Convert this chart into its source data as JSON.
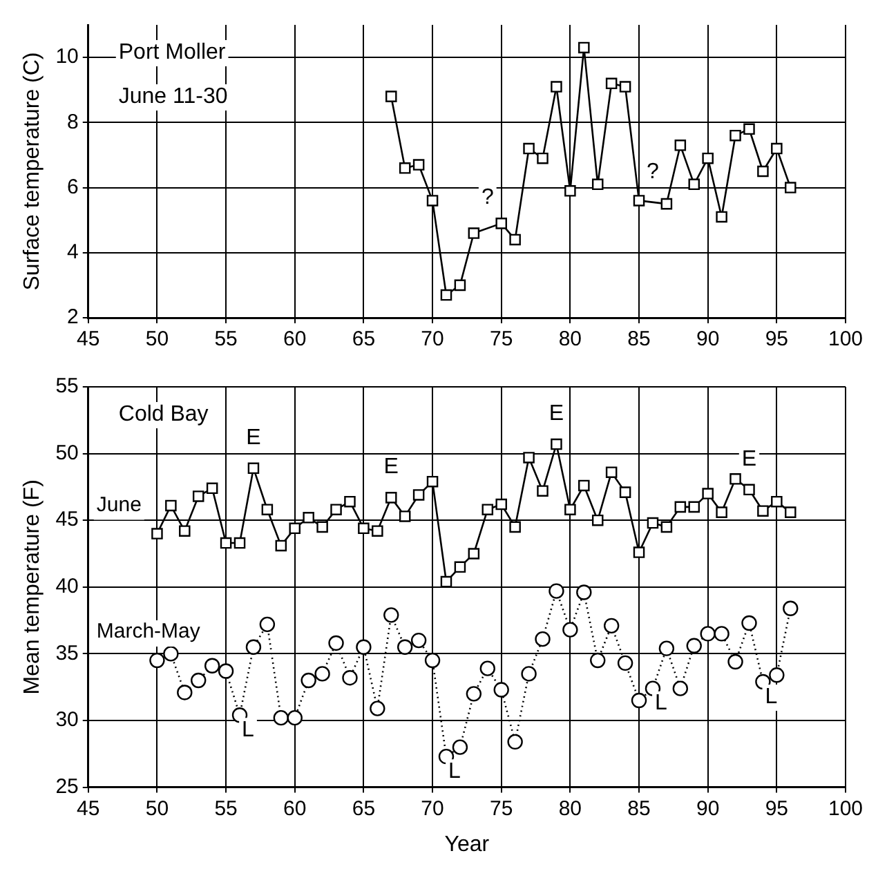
{
  "chart_data": [
    {
      "type": "line",
      "ylabel": "Surface temperature (C)",
      "xlim": [
        45,
        100
      ],
      "xticks": [
        45,
        50,
        55,
        60,
        65,
        70,
        75,
        80,
        85,
        90,
        95,
        100
      ],
      "ylim": [
        2,
        11
      ],
      "yticks": [
        2,
        4,
        6,
        8,
        10
      ],
      "grid": true,
      "x": [
        67,
        68,
        69,
        70,
        71,
        72,
        73,
        74,
        75,
        76,
        77,
        78,
        79,
        80,
        81,
        82,
        83,
        84,
        85,
        86,
        87,
        88,
        89,
        90,
        91,
        92,
        93,
        94,
        95,
        96
      ],
      "series": [
        {
          "color": "#000000",
          "marker": "square",
          "line_style": "solid",
          "values": [
            8.8,
            6.6,
            6.7,
            5.6,
            2.7,
            3.0,
            4.6,
            null,
            4.9,
            4.4,
            7.2,
            6.9,
            9.1,
            5.9,
            10.3,
            6.1,
            9.2,
            9.1,
            5.6,
            null,
            5.5,
            7.3,
            6.1,
            6.9,
            5.1,
            7.6,
            7.8,
            6.5,
            7.2,
            6.0
          ]
        }
      ],
      "annotations": [
        "Port Moller",
        "June 11-30",
        {
          "text": "?",
          "x": 74
        },
        {
          "text": "?",
          "x": 86
        }
      ]
    },
    {
      "type": "line",
      "xlabel": "Year",
      "ylabel": "Mean temperature (F)",
      "xlim": [
        45,
        100
      ],
      "xticks": [
        45,
        50,
        55,
        60,
        65,
        70,
        75,
        80,
        85,
        90,
        95,
        100
      ],
      "ylim": [
        25,
        55
      ],
      "yticks": [
        25,
        30,
        35,
        40,
        45,
        50,
        55
      ],
      "grid": true,
      "x": [
        50,
        51,
        52,
        53,
        54,
        55,
        56,
        57,
        58,
        59,
        60,
        61,
        62,
        63,
        64,
        65,
        66,
        67,
        68,
        69,
        70,
        71,
        72,
        73,
        74,
        75,
        76,
        77,
        78,
        79,
        80,
        81,
        82,
        83,
        84,
        85,
        86,
        87,
        88,
        89,
        90,
        91,
        92,
        93,
        94,
        95,
        96
      ],
      "series": [
        {
          "name": "June",
          "color": "#000000",
          "marker": "square",
          "line_style": "solid",
          "values": [
            44.0,
            46.1,
            44.2,
            46.8,
            47.4,
            43.3,
            43.3,
            48.9,
            45.8,
            43.1,
            44.4,
            45.2,
            44.5,
            45.8,
            46.4,
            44.4,
            44.2,
            46.7,
            45.3,
            46.9,
            47.9,
            40.4,
            41.5,
            42.5,
            45.8,
            46.2,
            44.5,
            49.7,
            47.2,
            50.7,
            45.8,
            47.6,
            45.0,
            48.6,
            47.1,
            42.6,
            44.8,
            44.5,
            46.0,
            46.0,
            47.0,
            45.6,
            48.1,
            47.3,
            45.7,
            46.4,
            45.6
          ]
        },
        {
          "name": "March-May",
          "color": "#000000",
          "marker": "circle",
          "line_style": "dotted",
          "values": [
            34.5,
            35.0,
            32.1,
            33.0,
            34.1,
            33.7,
            30.4,
            35.5,
            37.2,
            30.2,
            30.2,
            33.0,
            33.5,
            35.8,
            33.2,
            35.5,
            30.9,
            37.9,
            35.5,
            36.0,
            34.5,
            27.3,
            28.0,
            32.0,
            33.9,
            32.3,
            28.4,
            33.5,
            36.1,
            39.7,
            36.8,
            39.6,
            34.5,
            37.1,
            34.3,
            31.5,
            32.4,
            35.4,
            32.4,
            35.6,
            36.5,
            36.5,
            34.4,
            37.3,
            32.9,
            33.4,
            38.4
          ]
        }
      ],
      "annotations": [
        "Cold Bay",
        {
          "text": "E",
          "x": 57,
          "y": 48.9
        },
        {
          "text": "E",
          "x": 67,
          "y": 46.7
        },
        {
          "text": "E",
          "x": 79,
          "y": 50.7
        },
        {
          "text": "E",
          "x": 93,
          "y": 47.3
        },
        {
          "text": "L",
          "x": 56,
          "y": 30.4
        },
        {
          "text": "L",
          "x": 71,
          "y": 27.3
        },
        {
          "text": "L",
          "x": 86,
          "y": 32.4
        },
        {
          "text": "L",
          "x": 94,
          "y": 32.9
        }
      ]
    }
  ]
}
